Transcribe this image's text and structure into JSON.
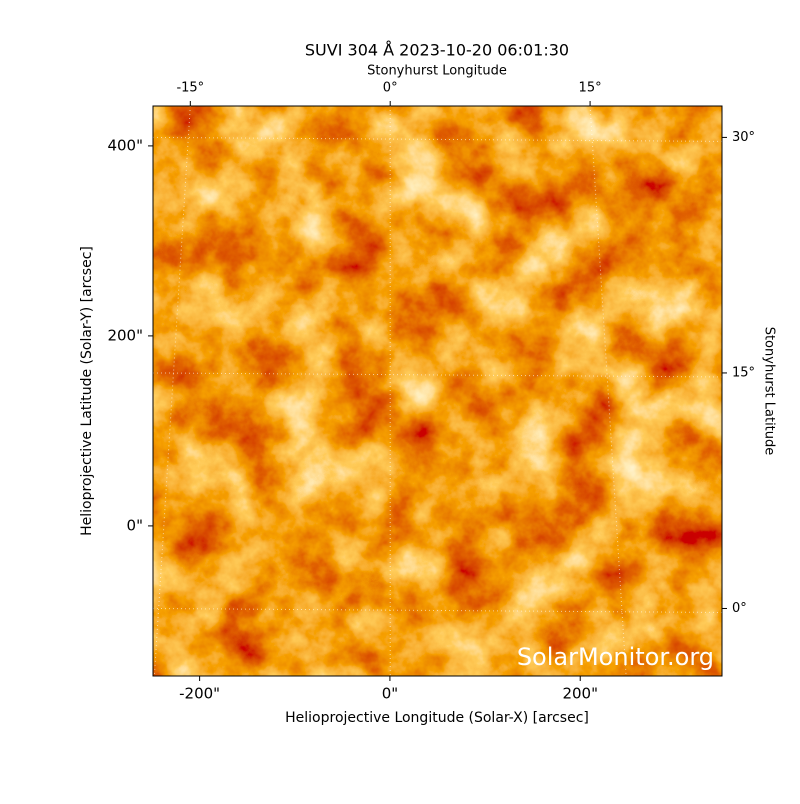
{
  "chart_data": {
    "type": "image",
    "title": "SUVI 304 Å 2023-10-20 06:01:30",
    "xlabel": "Helioprojective Longitude (Solar-X) [arcsec]",
    "ylabel": "Helioprojective Latitude (Solar-Y) [arcsec]",
    "x2label": "Stonyhurst Longitude",
    "y2label": "Stonyhurst Latitude",
    "xlim": [
      -249,
      349
    ],
    "ylim": [
      -158,
      442
    ],
    "xticks": [
      {
        "value": -200,
        "label": "-200\""
      },
      {
        "value": 0,
        "label": "0\""
      },
      {
        "value": 200,
        "label": "200\""
      }
    ],
    "yticks": [
      {
        "value": 0,
        "label": "0\""
      },
      {
        "value": 200,
        "label": "200\""
      },
      {
        "value": 400,
        "label": "400\""
      }
    ],
    "x2lim": [
      -17.8,
      24.9
    ],
    "x2ticks": [
      {
        "value": -15,
        "label": "-15°"
      },
      {
        "value": 0,
        "label": "0°"
      },
      {
        "value": 15,
        "label": "15°"
      }
    ],
    "y2lim": [
      -4.3,
      32.0
    ],
    "y2ticks": [
      {
        "value": 0,
        "label": "0°"
      },
      {
        "value": 15,
        "label": "15°"
      },
      {
        "value": 30,
        "label": "30°"
      }
    ],
    "grid": true,
    "annotation": "SolarMonitor.org"
  }
}
